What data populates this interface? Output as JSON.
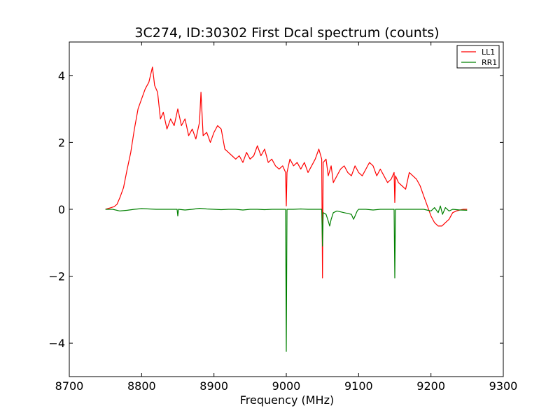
{
  "chart_data": {
    "type": "line",
    "title": "3C274, ID:30302 First Dcal spectrum (counts)",
    "xlabel": "Frequency (MHz)",
    "ylabel": "",
    "xlim": [
      8700,
      9300
    ],
    "ylim": [
      -5,
      5
    ],
    "xticks": [
      8700,
      8800,
      8900,
      9000,
      9100,
      9200,
      9300
    ],
    "yticks": [
      -4,
      -2,
      0,
      2,
      4
    ],
    "ytick_labels": [
      "−4",
      "−2",
      "0",
      "2",
      "4"
    ],
    "grid": false,
    "legend_position": "top-right",
    "series": [
      {
        "name": "LL1",
        "color": "#ff0000",
        "x": [
          8750,
          8758,
          8762,
          8766,
          8770,
          8775,
          8780,
          8785,
          8790,
          8795,
          8800,
          8805,
          8810,
          8815,
          8818,
          8822,
          8826,
          8830,
          8835,
          8840,
          8845,
          8850,
          8855,
          8860,
          8865,
          8870,
          8875,
          8880,
          8882,
          8885,
          8890,
          8895,
          8900,
          8905,
          8910,
          8915,
          8920,
          8925,
          8930,
          8935,
          8940,
          8945,
          8950,
          8955,
          8960,
          8965,
          8970,
          8975,
          8980,
          8985,
          8990,
          8995,
          8999,
          9000,
          9001,
          9005,
          9010,
          9015,
          9020,
          9025,
          9030,
          9035,
          9040,
          9045,
          9049,
          9050,
          9051,
          9055,
          9058,
          9062,
          9065,
          9070,
          9075,
          9080,
          9085,
          9090,
          9095,
          9100,
          9105,
          9110,
          9115,
          9120,
          9125,
          9130,
          9135,
          9140,
          9145,
          9149,
          9150,
          9151,
          9155,
          9160,
          9165,
          9170,
          9175,
          9180,
          9185,
          9190,
          9195,
          9200,
          9205,
          9210,
          9215,
          9220,
          9225,
          9230,
          9235,
          9240,
          9245,
          9250
        ],
        "y": [
          0,
          0.05,
          0.08,
          0.15,
          0.35,
          0.65,
          1.2,
          1.7,
          2.4,
          3.0,
          3.3,
          3.6,
          3.8,
          4.25,
          3.7,
          3.5,
          2.7,
          2.9,
          2.4,
          2.7,
          2.5,
          3.0,
          2.5,
          2.7,
          2.2,
          2.4,
          2.1,
          2.6,
          3.5,
          2.2,
          2.3,
          2.0,
          2.3,
          2.5,
          2.4,
          1.8,
          1.7,
          1.6,
          1.5,
          1.6,
          1.4,
          1.7,
          1.5,
          1.6,
          1.9,
          1.6,
          1.8,
          1.4,
          1.5,
          1.3,
          1.2,
          1.3,
          1.1,
          0.1,
          1.1,
          1.5,
          1.3,
          1.4,
          1.2,
          1.4,
          1.1,
          1.3,
          1.5,
          1.8,
          1.5,
          -2.05,
          1.4,
          1.5,
          1.0,
          1.3,
          0.8,
          1.0,
          1.2,
          1.3,
          1.1,
          1.0,
          1.3,
          1.1,
          1.0,
          1.2,
          1.4,
          1.3,
          1.0,
          1.2,
          1.0,
          0.8,
          0.9,
          1.1,
          0.2,
          1.0,
          0.8,
          0.7,
          0.6,
          1.1,
          1.0,
          0.9,
          0.7,
          0.4,
          0.1,
          -0.2,
          -0.4,
          -0.5,
          -0.5,
          -0.4,
          -0.3,
          -0.1,
          -0.05,
          -0.02,
          0,
          0
        ]
      },
      {
        "name": "RR1",
        "color": "#008000",
        "x": [
          8750,
          8760,
          8770,
          8780,
          8790,
          8800,
          8810,
          8820,
          8830,
          8840,
          8849,
          8850,
          8851,
          8860,
          8870,
          8880,
          8890,
          8900,
          8910,
          8920,
          8930,
          8940,
          8950,
          8960,
          8970,
          8980,
          8990,
          8999,
          9000,
          9001,
          9010,
          9020,
          9030,
          9040,
          9049,
          9050,
          9051,
          9055,
          9058,
          9060,
          9062,
          9065,
          9070,
          9080,
          9090,
          9093,
          9095,
          9098,
          9100,
          9110,
          9120,
          9130,
          9140,
          9149,
          9150,
          9151,
          9160,
          9170,
          9180,
          9190,
          9200,
          9205,
          9210,
          9213,
          9216,
          9220,
          9225,
          9230,
          9240,
          9250
        ],
        "y": [
          0,
          0,
          -0.05,
          -0.03,
          0,
          0.02,
          0.01,
          0,
          0,
          0,
          0,
          -0.2,
          0,
          -0.02,
          0,
          0.03,
          0.01,
          0,
          -0.01,
          0,
          0,
          -0.02,
          0,
          0,
          -0.01,
          0,
          0,
          0,
          -4.25,
          0,
          0,
          0.01,
          0,
          0,
          0,
          -1.1,
          -0.1,
          -0.15,
          -0.35,
          -0.5,
          -0.3,
          -0.1,
          -0.05,
          -0.1,
          -0.15,
          -0.3,
          -0.2,
          -0.05,
          0,
          0,
          -0.02,
          0,
          0,
          0,
          -2.05,
          0,
          0,
          0,
          0,
          0,
          -0.05,
          0.05,
          -0.1,
          0.1,
          -0.15,
          0.05,
          -0.05,
          0,
          -0.02,
          -0.03
        ]
      }
    ]
  }
}
